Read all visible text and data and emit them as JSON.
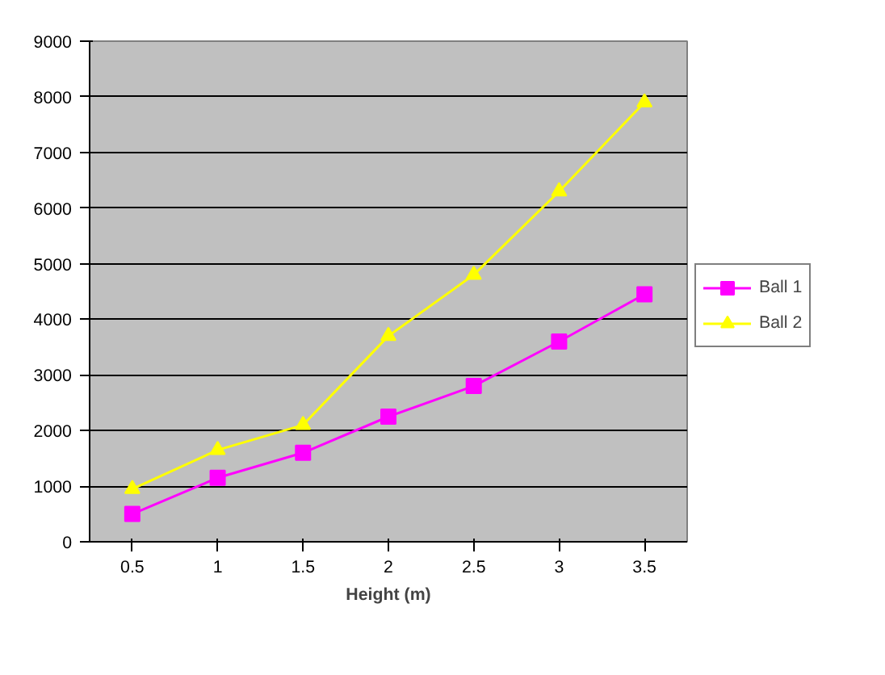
{
  "chart_data": {
    "type": "line",
    "xlabel": "Height (m)",
    "categories": [
      "0.5",
      "1",
      "1.5",
      "2",
      "2.5",
      "3",
      "3.5"
    ],
    "series": [
      {
        "name": "Ball 1",
        "color": "#ff00ff",
        "marker": "square",
        "values": [
          500,
          1150,
          1600,
          2250,
          2800,
          3600,
          4450
        ]
      },
      {
        "name": "Ball 2",
        "color": "#ffff00",
        "marker": "triangle",
        "values": [
          950,
          1650,
          2100,
          3700,
          4800,
          6300,
          7900
        ]
      }
    ],
    "ylim": [
      0,
      9000
    ],
    "yticks": [
      0,
      1000,
      2000,
      3000,
      4000,
      5000,
      6000,
      7000,
      8000,
      9000
    ],
    "grid": "y",
    "legend": "right"
  }
}
